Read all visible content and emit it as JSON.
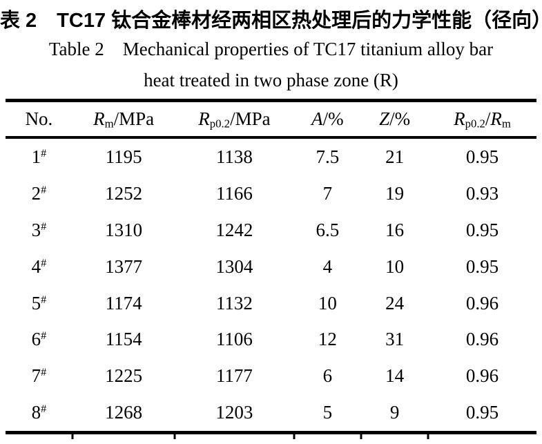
{
  "captions": {
    "zh": "表 2　TC17 钛合金棒材经两相区热处理后的力学性能（径向）",
    "en_line1": "Table 2    Mechanical properties of TC17 titanium alloy bar",
    "en_line2": "heat treated in two phase zone (R)"
  },
  "table": {
    "header": {
      "no": "No.",
      "rm": {
        "symbol": "R",
        "sub": "m",
        "suffix": "/MPa"
      },
      "rp02": {
        "symbol": "R",
        "sub": "p0.2",
        "suffix": "/MPa"
      },
      "a": {
        "symbol": "A",
        "suffix": "/%"
      },
      "z": {
        "symbol": "Z",
        "suffix": "/%"
      },
      "ratio": {
        "symbol1": "R",
        "sub1": "p0.2",
        "sep": "/",
        "symbol2": "R",
        "sub2": "m"
      }
    },
    "rows": [
      {
        "no": "1",
        "mark": "#",
        "rm": "1195",
        "rp02": "1138",
        "a": "7.5",
        "z": "21",
        "ratio": "0.95"
      },
      {
        "no": "2",
        "mark": "#",
        "rm": "1252",
        "rp02": "1166",
        "a": "7",
        "z": "19",
        "ratio": "0.93"
      },
      {
        "no": "3",
        "mark": "#",
        "rm": "1310",
        "rp02": "1242",
        "a": "6.5",
        "z": "16",
        "ratio": "0.95"
      },
      {
        "no": "4",
        "mark": "#",
        "rm": "1377",
        "rp02": "1304",
        "a": "4",
        "z": "10",
        "ratio": "0.95"
      },
      {
        "no": "5",
        "mark": "#",
        "rm": "1174",
        "rp02": "1132",
        "a": "10",
        "z": "24",
        "ratio": "0.96"
      },
      {
        "no": "6",
        "mark": "#",
        "rm": "1154",
        "rp02": "1106",
        "a": "12",
        "z": "31",
        "ratio": "0.96"
      },
      {
        "no": "7",
        "mark": "#",
        "rm": "1225",
        "rp02": "1177",
        "a": "6",
        "z": "14",
        "ratio": "0.96"
      },
      {
        "no": "8",
        "mark": "#",
        "rm": "1268",
        "rp02": "1203",
        "a": "5",
        "z": "9",
        "ratio": "0.95"
      }
    ]
  },
  "colors": {
    "text": "#000000",
    "background": "#ffffff",
    "rule": "#000000"
  }
}
